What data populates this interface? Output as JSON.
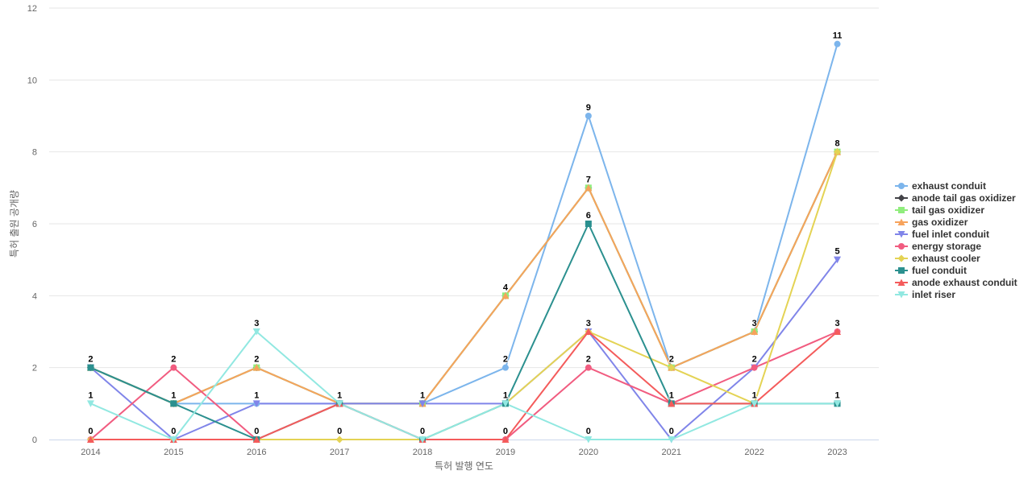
{
  "chart_data": {
    "type": "line",
    "title": "",
    "xlabel": "특허 발행 연도",
    "ylabel": "특허 출원 공개량",
    "ylim": [
      0,
      12
    ],
    "yticks": [
      0,
      2,
      4,
      6,
      8,
      10,
      12
    ],
    "grid": true,
    "legend_position": "right",
    "categories": [
      "2014",
      "2015",
      "2016",
      "2017",
      "2018",
      "2019",
      "2020",
      "2021",
      "2022",
      "2023"
    ],
    "series": [
      {
        "name": "exhaust conduit",
        "color": "#7cb5ec",
        "marker": "circle",
        "values": [
          2,
          1,
          1,
          1,
          1,
          2,
          9,
          2,
          3,
          11
        ]
      },
      {
        "name": "anode tail gas oxidizer",
        "color": "#434348",
        "marker": "diamond",
        "values": [
          2,
          1,
          2,
          1,
          1,
          4,
          7,
          2,
          3,
          8
        ]
      },
      {
        "name": "tail gas oxidizer",
        "color": "#90ed7d",
        "marker": "square",
        "values": [
          2,
          1,
          2,
          1,
          1,
          4,
          7,
          2,
          3,
          8
        ]
      },
      {
        "name": "gas oxidizer",
        "color": "#f7a35c",
        "marker": "triangle",
        "values": [
          2,
          1,
          2,
          1,
          1,
          4,
          7,
          2,
          3,
          8
        ]
      },
      {
        "name": "fuel inlet conduit",
        "color": "#8085e9",
        "marker": "triangle-down",
        "values": [
          2,
          0,
          1,
          1,
          1,
          1,
          3,
          0,
          2,
          5
        ]
      },
      {
        "name": "energy storage",
        "color": "#f15c80",
        "marker": "circle",
        "values": [
          0,
          2,
          0,
          1,
          0,
          0,
          2,
          1,
          2,
          3
        ]
      },
      {
        "name": "exhaust cooler",
        "color": "#e4d354",
        "marker": "diamond",
        "values": [
          0,
          0,
          0,
          0,
          0,
          1,
          3,
          2,
          1,
          8
        ]
      },
      {
        "name": "fuel conduit",
        "color": "#2b908f",
        "marker": "square",
        "values": [
          2,
          1,
          0,
          1,
          0,
          1,
          6,
          1,
          1,
          1
        ]
      },
      {
        "name": "anode exhaust conduit",
        "color": "#f45b5b",
        "marker": "triangle",
        "values": [
          0,
          0,
          0,
          1,
          0,
          0,
          3,
          1,
          1,
          3
        ]
      },
      {
        "name": "inlet riser",
        "color": "#91e8e1",
        "marker": "triangle-down",
        "values": [
          1,
          0,
          3,
          1,
          0,
          1,
          0,
          0,
          1,
          1
        ]
      }
    ],
    "data_labels": [
      {
        "series": "exhaust conduit",
        "index": 0,
        "text": "2"
      },
      {
        "series": "inlet riser",
        "index": 0,
        "text": "1"
      },
      {
        "series": "energy storage",
        "index": 0,
        "text": "0"
      },
      {
        "series": "energy storage",
        "index": 1,
        "text": "2"
      },
      {
        "series": "exhaust conduit",
        "index": 1,
        "text": "1"
      },
      {
        "series": "exhaust cooler",
        "index": 1,
        "text": "0"
      },
      {
        "series": "inlet riser",
        "index": 2,
        "text": "3"
      },
      {
        "series": "gas oxidizer",
        "index": 2,
        "text": "2"
      },
      {
        "series": "exhaust conduit",
        "index": 2,
        "text": "1"
      },
      {
        "series": "exhaust cooler",
        "index": 2,
        "text": "0"
      },
      {
        "series": "exhaust conduit",
        "index": 3,
        "text": "1"
      },
      {
        "series": "exhaust cooler",
        "index": 3,
        "text": "0"
      },
      {
        "series": "exhaust conduit",
        "index": 4,
        "text": "1"
      },
      {
        "series": "exhaust cooler",
        "index": 4,
        "text": "0"
      },
      {
        "series": "gas oxidizer",
        "index": 5,
        "text": "4"
      },
      {
        "series": "exhaust conduit",
        "index": 5,
        "text": "2"
      },
      {
        "series": "exhaust cooler",
        "index": 5,
        "text": "1"
      },
      {
        "series": "energy storage",
        "index": 5,
        "text": "0"
      },
      {
        "series": "exhaust conduit",
        "index": 6,
        "text": "9"
      },
      {
        "series": "gas oxidizer",
        "index": 6,
        "text": "7"
      },
      {
        "series": "fuel conduit",
        "index": 6,
        "text": "6"
      },
      {
        "series": "exhaust cooler",
        "index": 6,
        "text": "3"
      },
      {
        "series": "energy storage",
        "index": 6,
        "text": "2"
      },
      {
        "series": "inlet riser",
        "index": 6,
        "text": "0"
      },
      {
        "series": "gas oxidizer",
        "index": 7,
        "text": "2"
      },
      {
        "series": "fuel conduit",
        "index": 7,
        "text": "1"
      },
      {
        "series": "inlet riser",
        "index": 7,
        "text": "0"
      },
      {
        "series": "gas oxidizer",
        "index": 8,
        "text": "3"
      },
      {
        "series": "energy storage",
        "index": 8,
        "text": "2"
      },
      {
        "series": "exhaust cooler",
        "index": 8,
        "text": "1"
      },
      {
        "series": "exhaust conduit",
        "index": 9,
        "text": "11"
      },
      {
        "series": "gas oxidizer",
        "index": 9,
        "text": "8"
      },
      {
        "series": "fuel inlet conduit",
        "index": 9,
        "text": "5"
      },
      {
        "series": "energy storage",
        "index": 9,
        "text": "3"
      },
      {
        "series": "fuel conduit",
        "index": 9,
        "text": "1"
      }
    ]
  }
}
